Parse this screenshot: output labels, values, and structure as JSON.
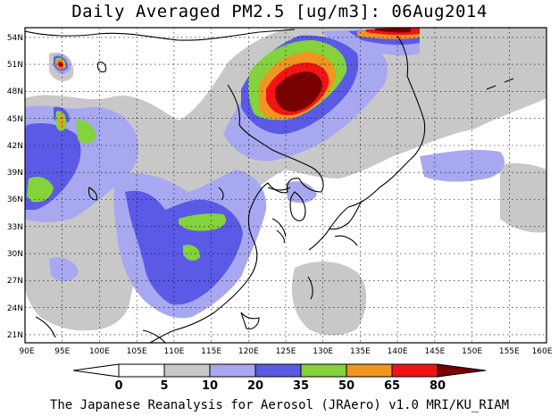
{
  "title": "Daily Averaged PM2.5 [ug/m3]: 06Aug2014",
  "credit": "The Japanese Reanalysis for Aerosol (JRAero) v1.0 MRI/KU_RIAM",
  "map": {
    "lon_range": [
      90,
      160
    ],
    "lat_range": [
      20,
      55
    ],
    "lat_labels": [
      "54N",
      "51N",
      "48N",
      "45N",
      "42N",
      "39N",
      "36N",
      "33N",
      "30N",
      "27N",
      "24N",
      "21N"
    ],
    "lon_labels": [
      "90E",
      "95E",
      "100E",
      "105E",
      "110E",
      "115E",
      "120E",
      "125E",
      "130E",
      "135E",
      "140E",
      "145E",
      "150E",
      "155E",
      "160E"
    ]
  },
  "colorbar": {
    "labels": [
      "0",
      "5",
      "10",
      "20",
      "35",
      "50",
      "65",
      "80"
    ],
    "colors": [
      "#ffffff",
      "#c8c8c8",
      "#a8a8f0",
      "#5a5ae6",
      "#84d23c",
      "#f0961e",
      "#f01414",
      "#780000"
    ]
  }
}
